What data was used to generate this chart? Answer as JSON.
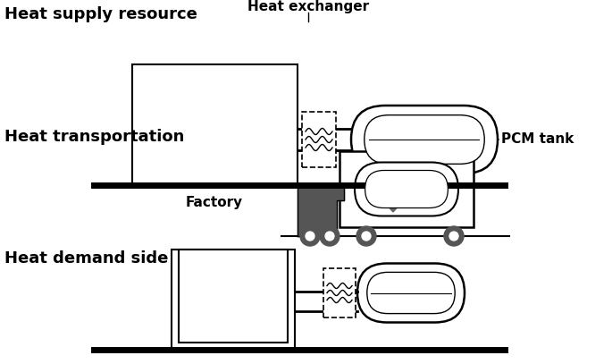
{
  "bg_color": "#ffffff",
  "line_color": "#000000",
  "gray_color": "#808080",
  "dark_gray": "#555555",
  "arrow_color": "#666666",
  "ground_color": "#000000",
  "texts": {
    "heat_supply": "Heat supply resource",
    "heat_exchanger": "Heat exchanger",
    "pcm_tank": "PCM tank",
    "factory": "Factory",
    "heat_transport": "Heat transportation",
    "heat_demand": "Heat demand side"
  },
  "font_size_large": 13,
  "font_size_small": 11
}
